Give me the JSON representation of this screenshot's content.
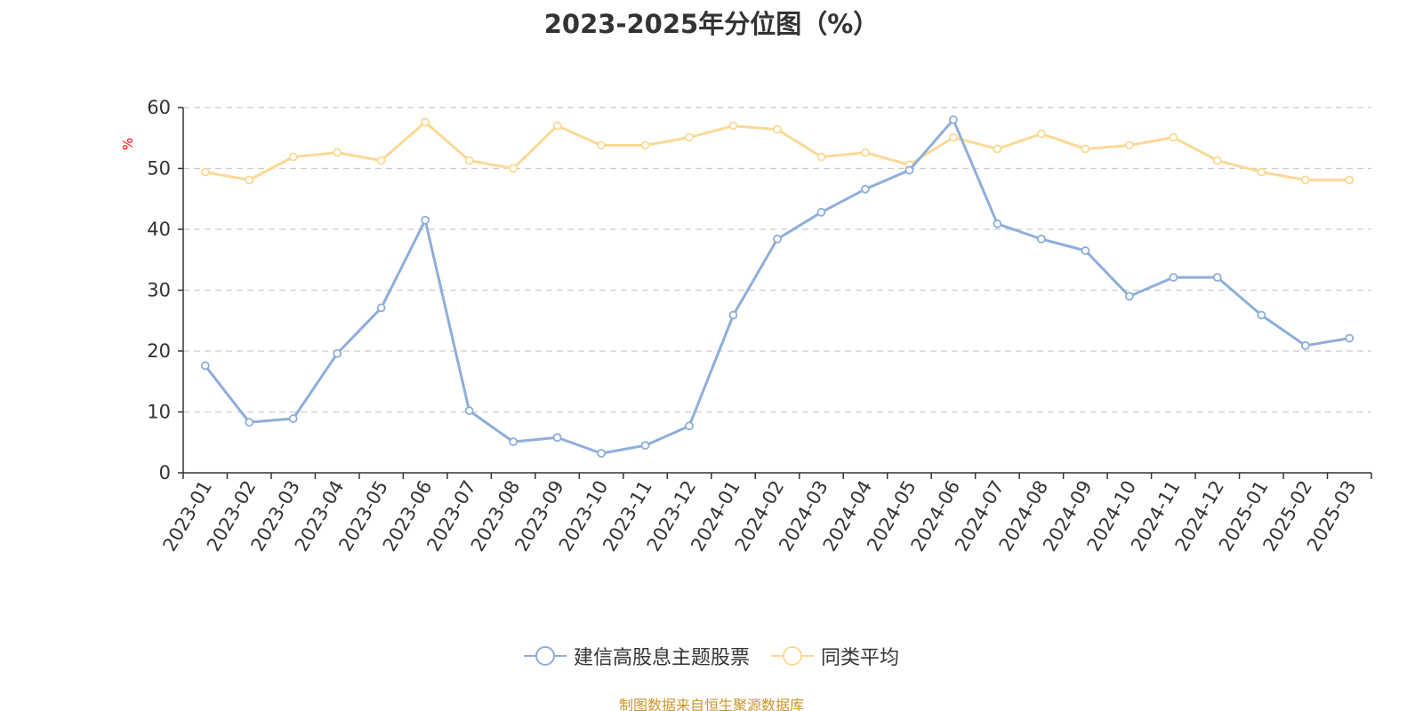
{
  "chart_data": {
    "type": "line",
    "title": "2023-2025年分位图（%）",
    "y_unit": "%",
    "ylim": [
      0,
      60
    ],
    "y_ticks": [
      0,
      10,
      20,
      30,
      40,
      50,
      60
    ],
    "grid": true,
    "legend_position": "bottom-center",
    "categories": [
      "2023-01",
      "2023-02",
      "2023-03",
      "2023-04",
      "2023-05",
      "2023-06",
      "2023-07",
      "2023-08",
      "2023-09",
      "2023-10",
      "2023-11",
      "2023-12",
      "2024-01",
      "2024-02",
      "2024-03",
      "2024-04",
      "2024-05",
      "2024-06",
      "2024-07",
      "2024-08",
      "2024-09",
      "2024-10",
      "2024-11",
      "2024-12",
      "2025-01",
      "2025-02",
      "2025-03"
    ],
    "series": [
      {
        "name": "建信高股息主题股票",
        "color": "#8eaedb",
        "values": [
          17.6,
          8.3,
          8.9,
          19.6,
          27.1,
          41.5,
          10.2,
          5.1,
          5.8,
          3.2,
          4.5,
          7.7,
          25.9,
          38.4,
          42.8,
          46.6,
          49.7,
          58.0,
          40.9,
          38.4,
          36.5,
          29.0,
          32.1,
          32.1,
          25.9,
          20.9,
          22.1
        ]
      },
      {
        "name": "同类平均",
        "color": "#fbd995",
        "values": [
          49.4,
          48.1,
          51.9,
          52.6,
          51.3,
          57.6,
          51.3,
          50.0,
          57.0,
          53.8,
          53.8,
          55.1,
          57.0,
          56.4,
          51.9,
          52.6,
          50.6,
          55.1,
          53.2,
          55.7,
          53.2,
          53.8,
          55.1,
          51.3,
          49.4,
          48.1,
          48.1
        ]
      }
    ]
  },
  "source_note": "制图数据来自恒生聚源数据库"
}
